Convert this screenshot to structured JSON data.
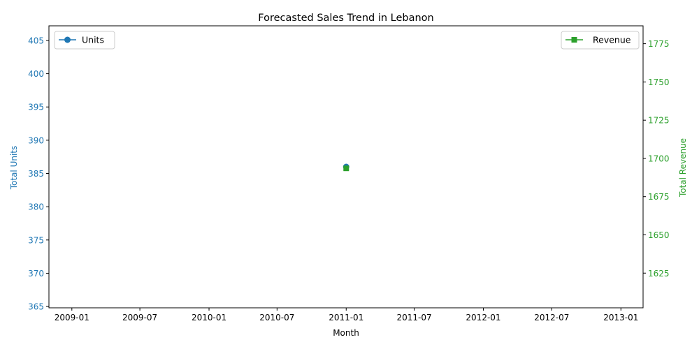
{
  "chart_data": {
    "type": "line",
    "title": "Forecasted Sales Trend in Lebanon",
    "xlabel": "Month",
    "x_ticks": [
      "2009-01",
      "2009-07",
      "2010-01",
      "2010-07",
      "2011-01",
      "2011-07",
      "2012-01",
      "2012-07",
      "2013-01"
    ],
    "x_range": [
      "2008-11-01",
      "2013-03-01"
    ],
    "y_left": {
      "label": "Total Units",
      "color": "#1f77b4",
      "ticks": [
        365,
        370,
        375,
        380,
        385,
        390,
        395,
        400,
        405
      ],
      "ylim": [
        364.8,
        407.2
      ]
    },
    "y_right": {
      "label": "Total Revenue",
      "color": "#2ca02c",
      "ticks": [
        1625,
        1650,
        1675,
        1700,
        1725,
        1750,
        1775
      ],
      "ylim": [
        1602.3,
        1786.7
      ]
    },
    "grid": false,
    "series": [
      {
        "name": "Units",
        "axis": "left",
        "marker": "circle",
        "color": "#1f77b4",
        "legend_position": "upper left",
        "points": [
          {
            "x": "2011-01-01",
            "y": 386
          }
        ]
      },
      {
        "name": "Revenue",
        "axis": "right",
        "marker": "square",
        "color": "#2ca02c",
        "legend_position": "upper right",
        "points": [
          {
            "x": "2011-01-01",
            "y": 1693.5
          }
        ]
      }
    ]
  }
}
